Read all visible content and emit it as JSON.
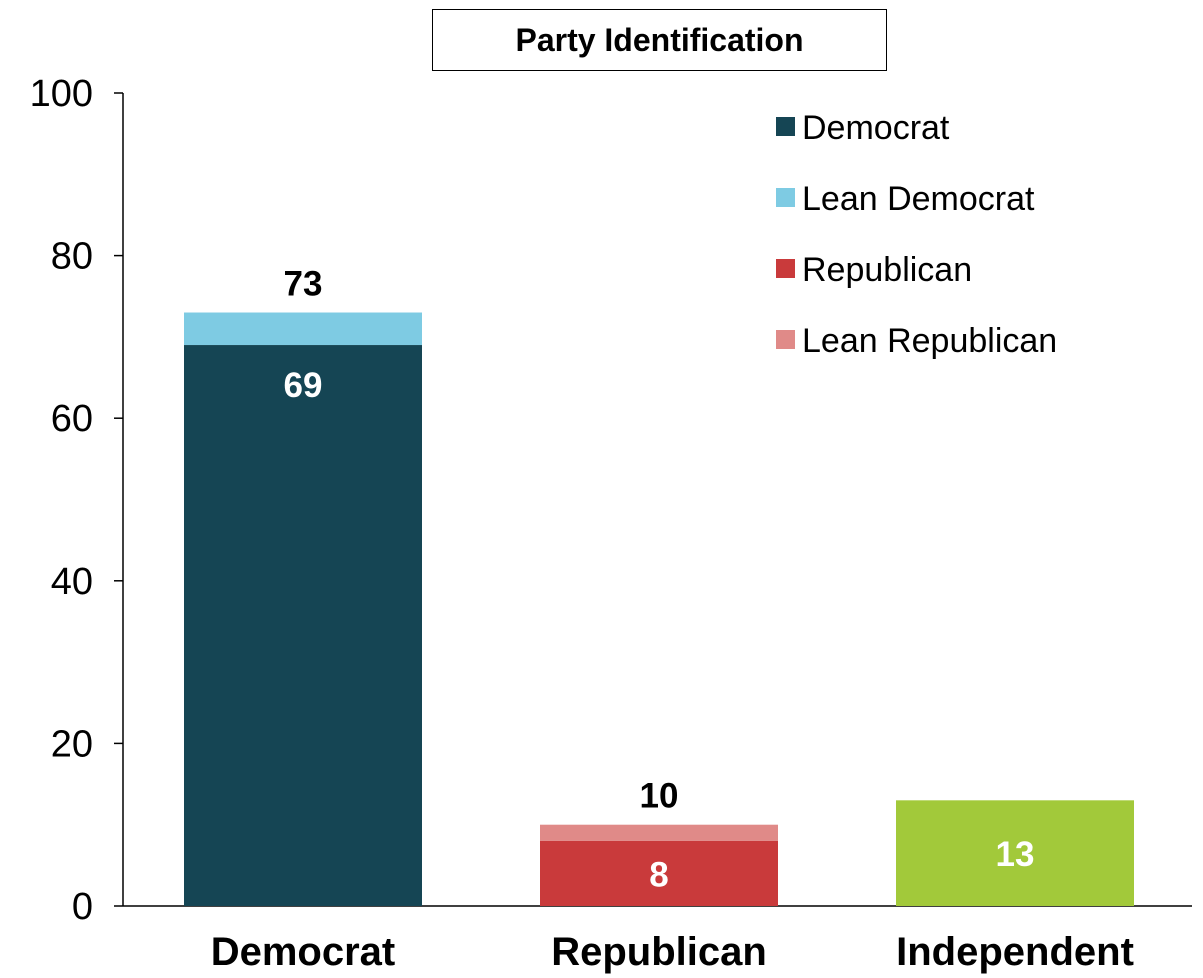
{
  "chart_data": {
    "type": "bar",
    "stacked": true,
    "title": "Party Identification",
    "categories": [
      "Democrat",
      "Republican",
      "Independent"
    ],
    "series": [
      {
        "name": "Democrat",
        "color": "#154554",
        "values": [
          69,
          0,
          0
        ]
      },
      {
        "name": "Lean Democrat",
        "color": "#7ecbe3",
        "values": [
          4,
          0,
          0
        ]
      },
      {
        "name": "Republican",
        "color": "#c93a3b",
        "values": [
          0,
          8,
          0
        ]
      },
      {
        "name": "Lean Republican",
        "color": "#e08a88",
        "values": [
          0,
          2,
          0
        ]
      },
      {
        "name": "",
        "color": "#a2c93a",
        "values": [
          0,
          0,
          13
        ],
        "legend": false
      }
    ],
    "data_labels": [
      {
        "category": "Democrat",
        "series": "Democrat",
        "text": "69",
        "position": "inside-top",
        "color": "#ffffff"
      },
      {
        "category": "Democrat",
        "series": "total",
        "text": "73",
        "position": "above",
        "color": "#000000"
      },
      {
        "category": "Republican",
        "series": "Republican",
        "text": "8",
        "position": "inside-center",
        "color": "#ffffff"
      },
      {
        "category": "Republican",
        "series": "total",
        "text": "10",
        "position": "above",
        "color": "#000000"
      },
      {
        "category": "Independent",
        "series": "",
        "text": "13",
        "position": "inside-center",
        "color": "#ffffff"
      }
    ],
    "y_ticks": [
      "0",
      "20",
      "40",
      "60",
      "80",
      "100"
    ],
    "ylim": [
      0,
      100
    ],
    "grid": false,
    "legend_position": "top-right"
  }
}
